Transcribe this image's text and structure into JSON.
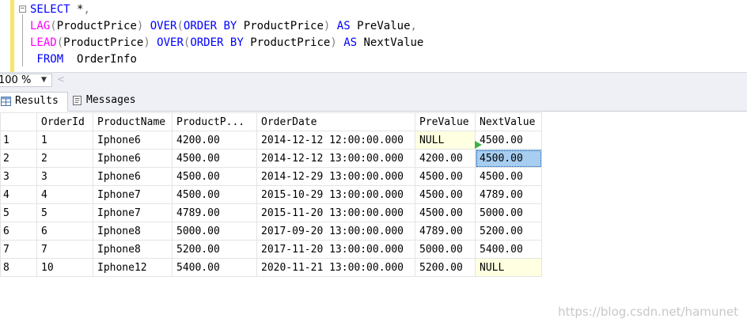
{
  "editor": {
    "lines": [
      {
        "parts": [
          {
            "t": "SELECT",
            "c": "kw"
          },
          {
            "t": " *",
            "c": ""
          },
          {
            "t": ",",
            "c": "gr"
          }
        ]
      },
      {
        "parts": [
          {
            "t": "LAG",
            "c": "fn"
          },
          {
            "t": "(",
            "c": "gr"
          },
          {
            "t": "ProductPrice",
            "c": ""
          },
          {
            "t": ") ",
            "c": "gr"
          },
          {
            "t": "OVER",
            "c": "kw"
          },
          {
            "t": "(",
            "c": "gr"
          },
          {
            "t": "ORDER BY",
            "c": "kw"
          },
          {
            "t": " ProductPrice",
            "c": ""
          },
          {
            "t": ") ",
            "c": "gr"
          },
          {
            "t": "AS",
            "c": "kw"
          },
          {
            "t": " PreValue",
            "c": ""
          },
          {
            "t": ",",
            "c": "gr"
          }
        ]
      },
      {
        "parts": [
          {
            "t": "LEAD",
            "c": "fn"
          },
          {
            "t": "(",
            "c": "gr"
          },
          {
            "t": "ProductPrice",
            "c": ""
          },
          {
            "t": ") ",
            "c": "gr"
          },
          {
            "t": "OVER",
            "c": "kw"
          },
          {
            "t": "(",
            "c": "gr"
          },
          {
            "t": "ORDER BY",
            "c": "kw"
          },
          {
            "t": " ProductPrice",
            "c": ""
          },
          {
            "t": ") ",
            "c": "gr"
          },
          {
            "t": "AS",
            "c": "kw"
          },
          {
            "t": " NextValue",
            "c": ""
          }
        ]
      },
      {
        "parts": [
          {
            "t": " FROM",
            "c": "kw"
          },
          {
            "t": "  OrderInfo",
            "c": ""
          }
        ]
      }
    ]
  },
  "zoom": {
    "value": "100 %"
  },
  "tabs": {
    "results_label": "Results",
    "messages_label": "Messages"
  },
  "grid": {
    "headers": [
      "",
      "OrderId",
      "ProductName",
      "ProductP...",
      "OrderDate",
      "PreValue",
      "NextValue"
    ],
    "rows": [
      [
        "1",
        "1",
        "Iphone6",
        "4200.00",
        "2014-12-12 12:00:00.000",
        "NULL",
        "4500.00"
      ],
      [
        "2",
        "2",
        "Iphone6",
        "4500.00",
        "2014-12-12 13:00:00.000",
        "4200.00",
        "4500.00"
      ],
      [
        "3",
        "3",
        "Iphone6",
        "4500.00",
        "2014-12-29 13:00:00.000",
        "4500.00",
        "4500.00"
      ],
      [
        "4",
        "4",
        "Iphone7",
        "4500.00",
        "2015-10-29 13:00:00.000",
        "4500.00",
        "4789.00"
      ],
      [
        "5",
        "5",
        "Iphone7",
        "4789.00",
        "2015-11-20 13:00:00.000",
        "4500.00",
        "5000.00"
      ],
      [
        "6",
        "6",
        "Iphone8",
        "5000.00",
        "2017-09-20 13:00:00.000",
        "4789.00",
        "5200.00"
      ],
      [
        "7",
        "7",
        "Iphone8",
        "5200.00",
        "2017-11-20 13:00:00.000",
        "5000.00",
        "5400.00"
      ],
      [
        "8",
        "10",
        "Iphone12",
        "5400.00",
        "2020-11-21 13:00:00.000",
        "5200.00",
        "NULL"
      ]
    ],
    "selected_cell": {
      "row": 1,
      "col": 6
    }
  },
  "watermark": "https://blog.csdn.net/hamunet",
  "colors": {
    "keyword": "#0000ff",
    "function": "#ff00ff",
    "null_bg": "#ffffe1",
    "selection": "#a7cdf0"
  }
}
